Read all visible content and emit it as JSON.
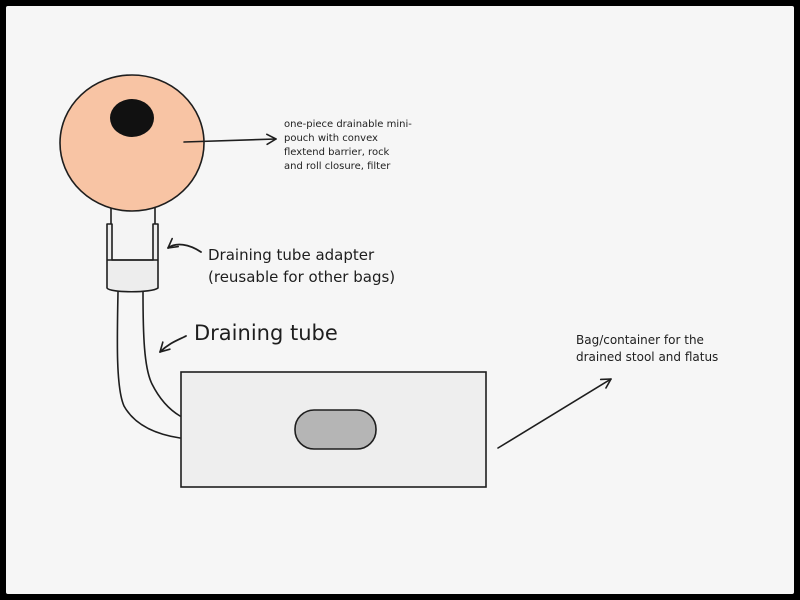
{
  "labels": {
    "pouch": "one-piece drainable mini-\npouch with convex\nflextend barrier, rock\nand roll closure, filter",
    "adapter": "Draining tube adapter\n(reusable for other bags)",
    "tube": "Draining tube",
    "bag": "Bag/container for the\ndrained stool and flatus"
  },
  "colors": {
    "background": "#f6f6f6",
    "frame": "#000000",
    "pouch_fill": "#f8c4a4",
    "stoma": "#111111",
    "stroke": "#1e1e1e",
    "bag_fill": "#eeeeee",
    "adapter_fill": "#ededed",
    "window_fill": "#b5b5b5"
  }
}
